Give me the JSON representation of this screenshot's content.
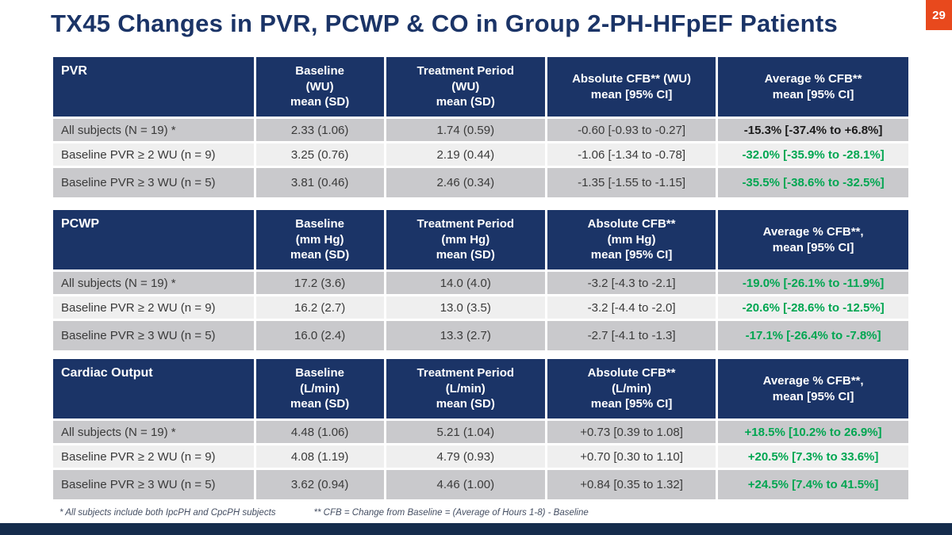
{
  "slide": {
    "title": "TX45 Changes in PVR, PCWP & CO in Group 2-PH-HFpEF Patients",
    "page_number": "29"
  },
  "colors": {
    "navy": "#1B3467",
    "green": "#00A651",
    "orange": "#E8491D",
    "row_gray": "#C9C9CC",
    "row_light": "#EFEFEF",
    "dark_value": "#1A1A1A",
    "footer_bar": "#152C4C"
  },
  "tables": [
    {
      "name": "PVR",
      "headers": [
        "PVR",
        "Baseline\n(WU)\nmean (SD)",
        "Treatment Period\n(WU)\nmean (SD)",
        "Absolute CFB** (WU)\nmean [95% CI]",
        "Average % CFB**\nmean [95% CI]"
      ],
      "rows": [
        {
          "cells": [
            "All subjects (N = 19) *",
            "2.33 (1.06)",
            "1.74 (0.59)",
            "-0.60 [-0.93 to -0.27]",
            "-15.3% [-37.4% to +6.8%]"
          ]
        },
        {
          "cells": [
            "Baseline PVR ≥ 2 WU (n = 9)",
            "3.25 (0.76)",
            "2.19 (0.44)",
            "-1.06 [-1.34 to -0.78]",
            "-32.0% [-35.9% to -28.1%]"
          ]
        },
        {
          "cells": [
            "Baseline PVR ≥ 3 WU (n = 5)",
            "3.81 (0.46)",
            "2.46 (0.34)",
            "-1.35 [-1.55 to -1.15]",
            "-35.5% [-38.6% to -32.5%]"
          ]
        }
      ]
    },
    {
      "name": "PCWP",
      "headers": [
        "PCWP",
        "Baseline\n(mm Hg)\nmean (SD)",
        "Treatment Period\n(mm Hg)\nmean (SD)",
        "Absolute CFB**\n(mm Hg)\nmean [95% CI]",
        "Average % CFB**,\nmean [95% CI]"
      ],
      "rows": [
        {
          "cells": [
            "All subjects (N = 19) *",
            "17.2 (3.6)",
            "14.0 (4.0)",
            "-3.2 [-4.3 to -2.1]",
            "-19.0% [-26.1% to -11.9%]"
          ]
        },
        {
          "cells": [
            "Baseline PVR ≥ 2 WU (n = 9)",
            "16.2 (2.7)",
            "13.0 (3.5)",
            "-3.2 [-4.4 to -2.0]",
            "-20.6% [-28.6% to -12.5%]"
          ]
        },
        {
          "cells": [
            "Baseline PVR ≥ 3 WU (n = 5)",
            "16.0 (2.4)",
            "13.3 (2.7)",
            "-2.7 [-4.1 to -1.3]",
            "-17.1% [-26.4% to -7.8%]"
          ]
        }
      ]
    },
    {
      "name": "Cardiac Output",
      "headers": [
        "Cardiac Output",
        "Baseline\n(L/min)\nmean (SD)",
        "Treatment Period\n(L/min)\nmean (SD)",
        "Absolute CFB**\n(L/min)\nmean [95% CI]",
        "Average % CFB**,\nmean [95% CI]"
      ],
      "rows": [
        {
          "cells": [
            "All subjects (N = 19) *",
            "4.48 (1.06)",
            "5.21 (1.04)",
            "+0.73 [0.39 to 1.08]",
            "+18.5% [10.2% to 26.9%]"
          ]
        },
        {
          "cells": [
            "Baseline PVR ≥ 2 WU (n = 9)",
            "4.08 (1.19)",
            "4.79 (0.93)",
            "+0.70 [0.30 to 1.10]",
            "+20.5% [7.3% to 33.6%]"
          ]
        },
        {
          "cells": [
            "Baseline PVR ≥ 3 WU (n = 5)",
            "3.62 (0.94)",
            "4.46 (1.00)",
            "+0.84 [0.35 to 1.32]",
            "+24.5% [7.4% to 41.5%]"
          ]
        }
      ]
    }
  ],
  "footnotes": {
    "asterisk": "* All subjects include both IpcPH and CpcPH subjects",
    "double_asterisk": "** CFB = Change from Baseline = (Average of Hours 1-8) - Baseline"
  }
}
